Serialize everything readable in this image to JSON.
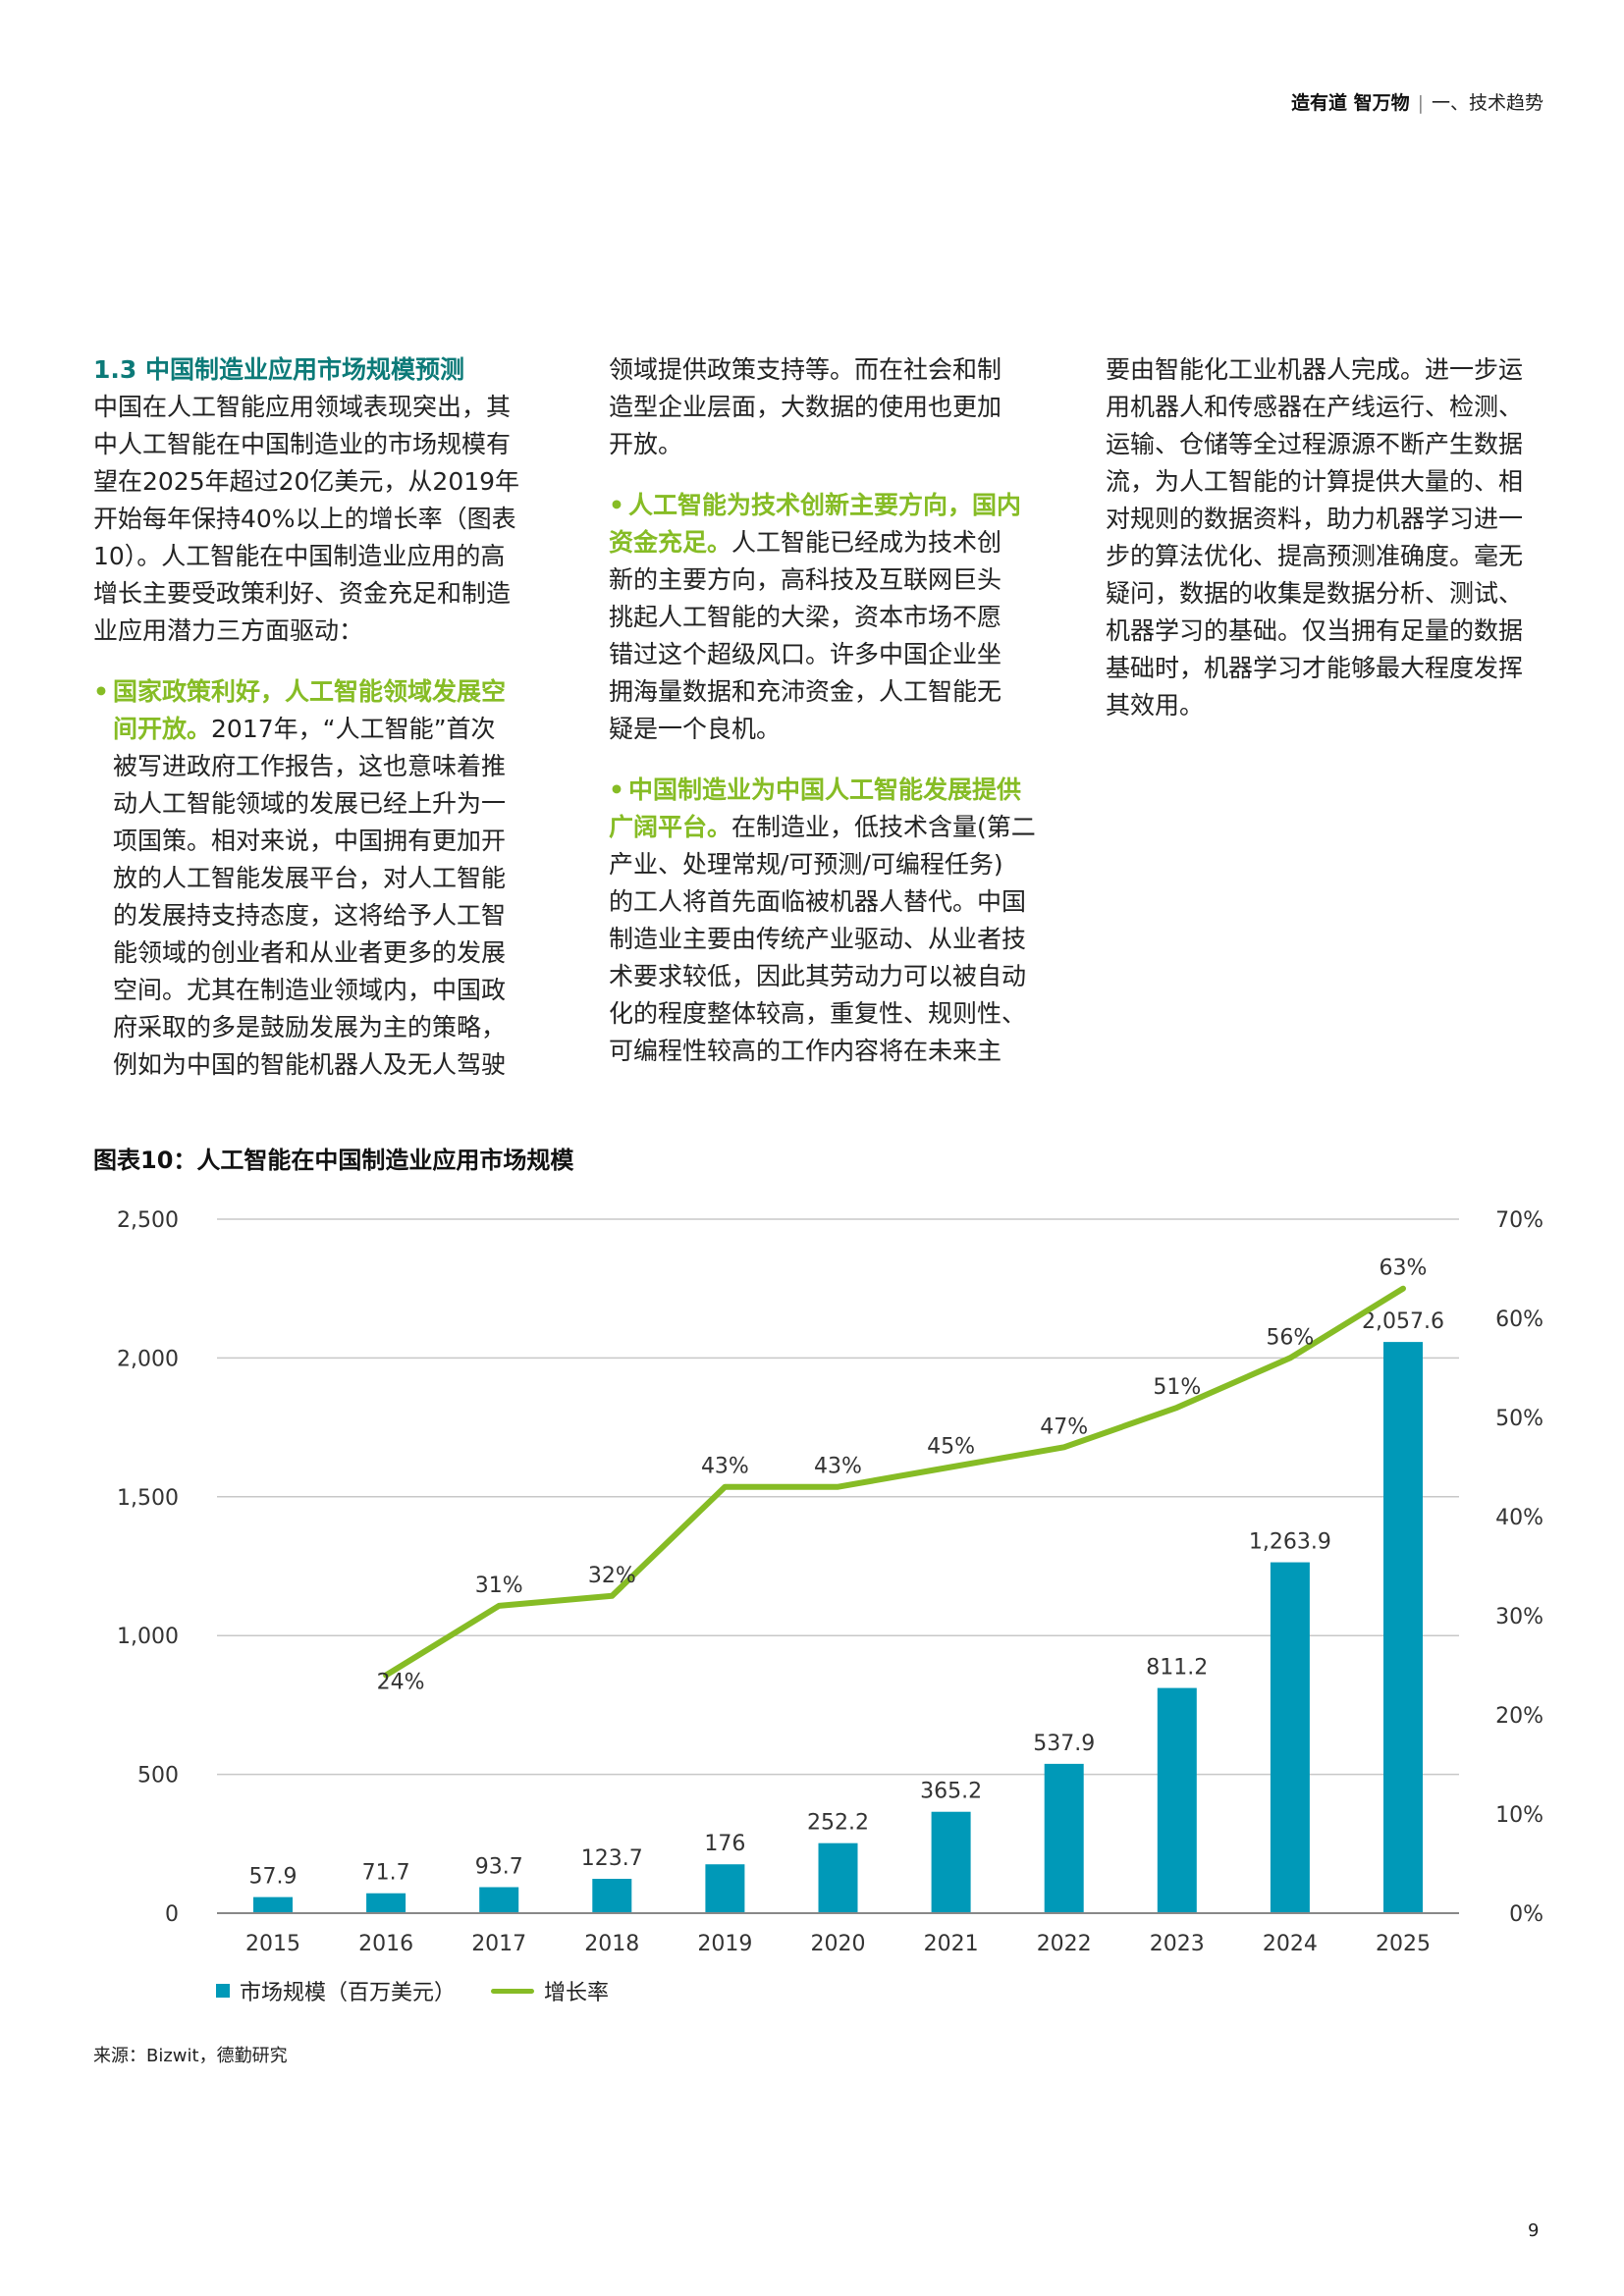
{
  "header": {
    "brand": "造有道 智万物",
    "separator": "|",
    "section": "一、技术趋势"
  },
  "colors": {
    "heading_teal": "#0c7a78",
    "accent_green": "#86bc25",
    "bar_blue": "#0099b8"
  },
  "columns": [
    [
      {
        "h": "1.3 中国制造业应用市场规模预测"
      },
      {
        "t": "中国在人工智能应用领域表现突出，其"
      },
      {
        "t": "中人工智能在中国制造业的市场规模有"
      },
      {
        "t": "望在2025年超过20亿美元，从2019年"
      },
      {
        "t": "开始每年保持40%以上的增长率（图表"
      },
      {
        "t": "10）。人工智能在中国制造业应用的高"
      },
      {
        "t": "增长主要受政策利好、资金充足和制造"
      },
      {
        "t": "业应用潜力三方面驱动："
      },
      {
        "gap": true
      },
      {
        "b": true,
        "g": "国家政策利好，人工智能领域发展空"
      },
      {
        "i": true,
        "g": "间开放。",
        "t": "2017年，“人工智能”首次"
      },
      {
        "i": true,
        "t": "被写进政府工作报告，这也意味着推"
      },
      {
        "i": true,
        "t": "动人工智能领域的发展已经上升为一"
      },
      {
        "i": true,
        "t": "项国策。相对来说，中国拥有更加开"
      },
      {
        "i": true,
        "t": "放的人工智能发展平台，对人工智能"
      },
      {
        "i": true,
        "t": "的发展持支持态度，这将给予人工智"
      },
      {
        "i": true,
        "t": "能领域的创业者和从业者更多的发展"
      },
      {
        "i": true,
        "t": "空间。尤其在制造业领域内，中国政"
      },
      {
        "i": true,
        "t": "府采取的多是鼓励发展为主的策略，"
      },
      {
        "i": true,
        "t": "例如为中国的智能机器人及无人驾驶"
      }
    ],
    [
      {
        "t": "领域提供政策支持等。而在社会和制"
      },
      {
        "t": "造型企业层面，大数据的使用也更加"
      },
      {
        "t": "开放。"
      },
      {
        "gap": true
      },
      {
        "b": true,
        "g": "人工智能为技术创新主要方向，国内"
      },
      {
        "g": "资金充足。",
        "t": "人工智能已经成为技术创"
      },
      {
        "t": "新的主要方向，高科技及互联网巨头"
      },
      {
        "t": "挑起人工智能的大梁，资本市场不愿"
      },
      {
        "t": "错过这个超级风口。许多中国企业坐"
      },
      {
        "t": "拥海量数据和充沛资金，人工智能无"
      },
      {
        "t": "疑是一个良机。"
      },
      {
        "gap": true
      },
      {
        "b": true,
        "g": "中国制造业为中国人工智能发展提供"
      },
      {
        "g": "广阔平台。",
        "t": "在制造业，低技术含量(第二"
      },
      {
        "t": "产业、处理常规/可预测/可编程任务)"
      },
      {
        "t": "的工人将首先面临被机器人替代。中国"
      },
      {
        "t": "制造业主要由传统产业驱动、从业者技"
      },
      {
        "t": "术要求较低，因此其劳动力可以被自动"
      },
      {
        "t": "化的程度整体较高，重复性、规则性、"
      },
      {
        "t": "可编程性较高的工作内容将在未来主"
      }
    ],
    [
      {
        "t": "要由智能化工业机器人完成。进一步运"
      },
      {
        "t": "用机器人和传感器在产线运行、检测、"
      },
      {
        "t": "运输、仓储等全过程源源不断产生数据"
      },
      {
        "t": "流，为人工智能的计算提供大量的、相"
      },
      {
        "t": "对规则的数据资料，助力机器学习进一"
      },
      {
        "t": "步的算法优化、提高预测准确度。毫无"
      },
      {
        "t": "疑问，数据的收集是数据分析、测试、"
      },
      {
        "t": "机器学习的基础。仅当拥有足量的数据"
      },
      {
        "t": "基础时，机器学习才能够最大程度发挥"
      },
      {
        "t": "其效用。"
      }
    ]
  ],
  "chart_title": "图表10：人工智能在中国制造业应用市场规模",
  "chart_data": {
    "type": "bar+line",
    "title": "图表10：人工智能在中国制造业应用市场规模",
    "categories": [
      "2015",
      "2016",
      "2017",
      "2018",
      "2019",
      "2020",
      "2021",
      "2022",
      "2023",
      "2024",
      "2025"
    ],
    "series": [
      {
        "name": "市场规模（百万美元）",
        "type": "bar",
        "axis": "left",
        "color": "#0099b8",
        "values": [
          57.9,
          71.7,
          93.7,
          123.7,
          176,
          252.2,
          365.2,
          537.9,
          811.2,
          1263.9,
          2057.6
        ],
        "labels": [
          "57.9",
          "71.7",
          "93.7",
          "123.7",
          "176",
          "252.2",
          "365.2",
          "537.9",
          "811.2",
          "1,263.9",
          "2,057.6"
        ]
      },
      {
        "name": "增长率",
        "type": "line",
        "axis": "right",
        "color": "#86bc25",
        "values": [
          null,
          24,
          31,
          32,
          43,
          43,
          45,
          47,
          51,
          56,
          63
        ],
        "labels": [
          null,
          "24%",
          "31%",
          "32%",
          "43%",
          "43%",
          "45%",
          "47%",
          "51%",
          "56%",
          "63%"
        ]
      }
    ],
    "left_axis": {
      "range": [
        0,
        2500
      ],
      "ticks": [
        "0",
        "500",
        "1,000",
        "1,500",
        "2,000",
        "2,500"
      ],
      "tick_values": [
        0,
        500,
        1000,
        1500,
        2000,
        2500
      ]
    },
    "right_axis": {
      "range": [
        0,
        70
      ],
      "ticks": [
        "0%",
        "10%",
        "20%",
        "30%",
        "40%",
        "50%",
        "60%",
        "70%"
      ],
      "tick_values": [
        0,
        10,
        20,
        30,
        40,
        50,
        60,
        70
      ]
    },
    "grid": true,
    "legend": "bottom-left"
  },
  "source": "来源：Bizwit，德勤研究",
  "page_number": "9"
}
